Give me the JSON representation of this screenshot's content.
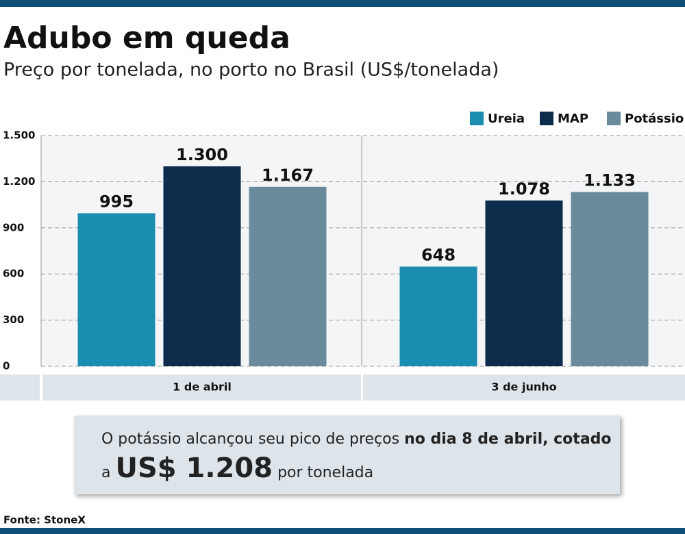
{
  "chart_data": {
    "type": "bar",
    "title": "Adubo em queda",
    "subtitle": "Preço por tonelada, no porto no Brasil (US$/tonelada)",
    "categories": [
      "1 de abril",
      "3 de junho"
    ],
    "series": [
      {
        "name": "Ureia",
        "color": "#1a8db0",
        "values": [
          995,
          648
        ],
        "value_labels": [
          "995",
          "648"
        ]
      },
      {
        "name": "MAP",
        "color": "#0d2b4a",
        "values": [
          1300,
          1078
        ],
        "value_labels": [
          "1.300",
          "1.078"
        ]
      },
      {
        "name": "Potássio",
        "color": "#6a8b9c",
        "values": [
          1167,
          1133
        ],
        "value_labels": [
          "1.167",
          "1.133"
        ]
      }
    ],
    "ylim": [
      0,
      1500
    ],
    "yticks": [
      0,
      300,
      600,
      900,
      {
        "value": 1200,
        "label": "1.200"
      },
      {
        "value": 1500,
        "label": "1.500"
      }
    ],
    "grid": true,
    "legend": "top-right",
    "annotation": {
      "text1": "O potássio alcançou seu pico de preços",
      "text2": "no dia 8 de abril, cotado",
      "text3": "a",
      "highlight": "US$ 1.208",
      "text4": "por tonelada"
    },
    "source": "Fonte: StoneX"
  }
}
